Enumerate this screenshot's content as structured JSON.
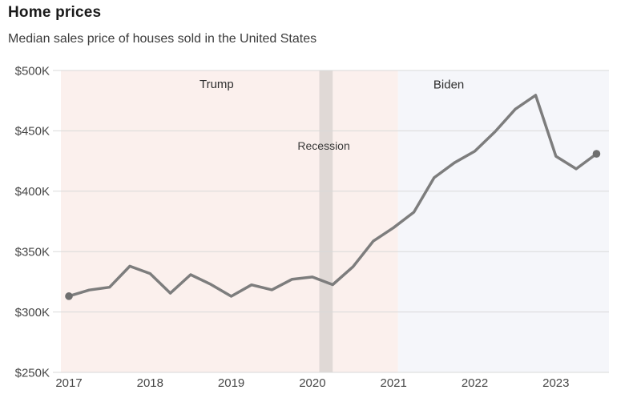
{
  "header": {
    "title": "Home prices",
    "subtitle": "Median sales price of houses sold in the United States"
  },
  "chart_data": {
    "type": "line",
    "title": "Home prices",
    "subtitle": "Median sales price of houses sold in the United States",
    "series_name": "Median sales price of houses sold in the United States",
    "unit": "USD thousands",
    "x": [
      2017.0,
      2017.25,
      2017.5,
      2017.75,
      2018.0,
      2018.25,
      2018.5,
      2018.75,
      2019.0,
      2019.25,
      2019.5,
      2019.75,
      2020.0,
      2020.25,
      2020.5,
      2020.75,
      2021.0,
      2021.25,
      2021.5,
      2021.75,
      2022.0,
      2022.25,
      2022.5,
      2022.75,
      2023.0,
      2023.25,
      2023.5
    ],
    "values": [
      313.1,
      318.2,
      320.5,
      337.9,
      331.8,
      315.6,
      330.9,
      322.8,
      313.0,
      322.5,
      318.4,
      327.1,
      329.0,
      322.6,
      337.5,
      358.7,
      369.8,
      382.6,
      411.2,
      423.6,
      433.1,
      449.3,
      468.0,
      479.5,
      429.0,
      418.5,
      431.0
    ],
    "ylim": [
      250,
      500
    ],
    "xlim": [
      2016.9,
      2023.66
    ],
    "grid": "horizontal",
    "legend_position": "none",
    "y_ticks": [
      {
        "value": 500,
        "label": "$500K"
      },
      {
        "value": 450,
        "label": "$450K"
      },
      {
        "value": 400,
        "label": "$400K"
      },
      {
        "value": 350,
        "label": "$350K"
      },
      {
        "value": 300,
        "label": "$300K"
      },
      {
        "value": 250,
        "label": "$250K"
      }
    ],
    "x_ticks": [
      {
        "value": 2017,
        "label": "2017"
      },
      {
        "value": 2018,
        "label": "2018"
      },
      {
        "value": 2019,
        "label": "2019"
      },
      {
        "value": 2020,
        "label": "2020"
      },
      {
        "value": 2021,
        "label": "2021"
      },
      {
        "value": 2022,
        "label": "2022"
      },
      {
        "value": 2023,
        "label": "2023"
      }
    ],
    "regions": [
      {
        "label": "Trump",
        "from": 2016.9,
        "to": 2021.055,
        "color": "#fbf0ed",
        "label_x": 2018.82,
        "label_y": 489.0
      },
      {
        "label": "Biden",
        "from": 2021.055,
        "to": 2023.66,
        "color": "#f5f6fa",
        "label_x": 2021.68,
        "label_y": 488.5
      }
    ],
    "bands": [
      {
        "label": "Recession",
        "from": 2020.085,
        "to": 2020.25,
        "color": "#e0d9d6",
        "label_x": 2020.14,
        "label_y": 437.5
      }
    ],
    "colors": {
      "line": "#7d7d7d",
      "marker": "#6f6f6f",
      "gridline": "#d9d9d9"
    }
  }
}
